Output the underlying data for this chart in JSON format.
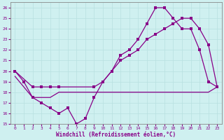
{
  "xlabel": "Windchill (Refroidissement éolien,°C)",
  "bg_color": "#cff0f0",
  "grid_color": "#b8e0e0",
  "line_color": "#880088",
  "xlim": [
    -0.5,
    23.5
  ],
  "ylim": [
    15,
    26.5
  ],
  "yticks": [
    15,
    16,
    17,
    18,
    19,
    20,
    21,
    22,
    23,
    24,
    25,
    26
  ],
  "xticks": [
    0,
    1,
    2,
    3,
    4,
    5,
    6,
    7,
    8,
    9,
    10,
    11,
    12,
    13,
    14,
    15,
    16,
    17,
    18,
    19,
    20,
    21,
    22,
    23
  ],
  "line_windchill": {
    "x": [
      0,
      1,
      2,
      3,
      4,
      5,
      6,
      7,
      8,
      9,
      10,
      11,
      12,
      13,
      14,
      15,
      16,
      17,
      18,
      19,
      20,
      21,
      22,
      23
    ],
    "y": [
      20,
      19,
      17.5,
      17,
      16.5,
      16,
      16.5,
      15,
      15.5,
      17.5,
      19,
      20,
      21.5,
      22,
      23,
      24.5,
      26,
      26,
      25,
      24,
      24,
      22,
      19,
      18.5
    ]
  },
  "line_temp": {
    "x": [
      0,
      2,
      3,
      4,
      5,
      9,
      10,
      11,
      12,
      13,
      14,
      15,
      16,
      17,
      18,
      19,
      20,
      21,
      22,
      23
    ],
    "y": [
      20,
      18.5,
      18.5,
      18.5,
      18.5,
      18.5,
      19,
      20,
      21,
      21.5,
      22,
      23,
      23.5,
      24,
      24.5,
      25,
      25,
      24,
      22.5,
      18.5
    ]
  },
  "line_flat": {
    "x": [
      0,
      1,
      2,
      3,
      4,
      5,
      6,
      7,
      8,
      9,
      10,
      11,
      12,
      13,
      14,
      15,
      16,
      17,
      18,
      19,
      20,
      21,
      22,
      23
    ],
    "y": [
      19.5,
      18.5,
      17.5,
      17.5,
      17.5,
      18,
      18,
      18,
      18,
      18,
      18,
      18,
      18,
      18,
      18,
      18,
      18,
      18,
      18,
      18,
      18,
      18,
      18,
      18.5
    ]
  }
}
